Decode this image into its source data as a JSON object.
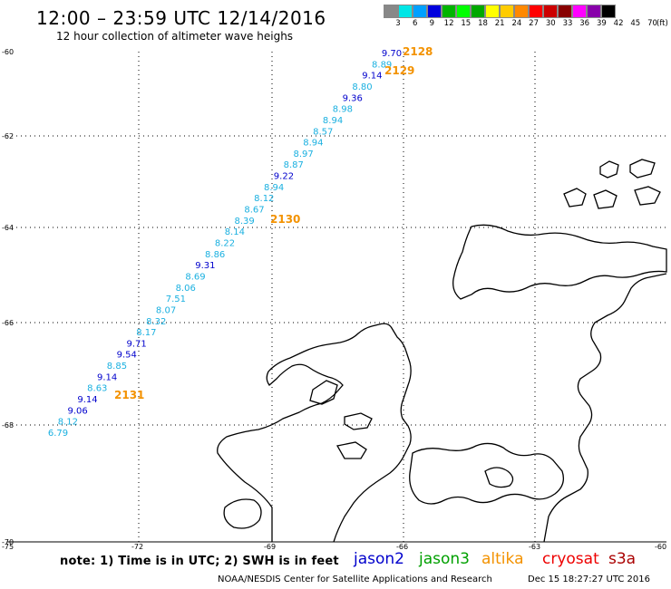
{
  "header": {
    "title": "12:00 – 23:59 UTC 12/14/2016",
    "subtitle": "12 hour collection of altimeter wave heighs"
  },
  "legend": {
    "colors": [
      "#888888",
      "#00e6e6",
      "#00a0ff",
      "#0000dd",
      "#00b400",
      "#00ff00",
      "#00a800",
      "#ffff00",
      "#ffcc00",
      "#ff8800",
      "#ff0000",
      "#cc0000",
      "#880000",
      "#ff00ff",
      "#8800aa",
      "#000000"
    ],
    "labels": [
      "3",
      "6",
      "9",
      "12",
      "15",
      "18",
      "21",
      "24",
      "27",
      "30",
      "33",
      "36",
      "39",
      "42",
      "45",
      "70"
    ],
    "unit": "(ft)"
  },
  "axes": {
    "lat_labels": [
      "-60",
      "-62",
      "-64",
      "-66",
      "-68",
      "-70"
    ],
    "lon_labels": [
      "-75",
      "-72",
      "-69",
      "-66",
      "-63",
      "-60"
    ]
  },
  "track": {
    "values": [
      "9.70",
      "8.89",
      "9.14",
      "8.80",
      "9.36",
      "8.98",
      "8.94",
      "8.57",
      "8.94",
      "8.97",
      "8.87",
      "9.22",
      "8.94",
      "8.12",
      "8.67",
      "8.39",
      "8.14",
      "8.22",
      "8.86",
      "9.31",
      "8.69",
      "8.06",
      "7.51",
      "8.07",
      "8.32",
      "8.17",
      "9.71",
      "9.54",
      "8.85",
      "9.14",
      "8.63",
      "9.14",
      "9.06",
      "8.12",
      "6.79"
    ],
    "colors": [
      "#0000cc",
      "#1ab0e0",
      "#0000cc",
      "#1ab0e0",
      "#0000cc",
      "#1ab0e0",
      "#1ab0e0",
      "#1ab0e0",
      "#1ab0e0",
      "#1ab0e0",
      "#1ab0e0",
      "#0000cc",
      "#1ab0e0",
      "#1ab0e0",
      "#1ab0e0",
      "#1ab0e0",
      "#1ab0e0",
      "#1ab0e0",
      "#1ab0e0",
      "#0000cc",
      "#1ab0e0",
      "#1ab0e0",
      "#1ab0e0",
      "#1ab0e0",
      "#1ab0e0",
      "#1ab0e0",
      "#0000cc",
      "#0000cc",
      "#1ab0e0",
      "#0000cc",
      "#1ab0e0",
      "#0000cc",
      "#0000cc",
      "#1ab0e0",
      "#1ab0e0"
    ],
    "times": [
      "2128",
      "2129",
      "2130",
      "2131"
    ],
    "time_color": "#f39200"
  },
  "footer": {
    "note": "note:  1) Time is in UTC;  2) SWH is in feet",
    "satellites": [
      {
        "name": "jason2",
        "color": "#0000cc"
      },
      {
        "name": "jason3",
        "color": "#00a000"
      },
      {
        "name": "altika",
        "color": "#f39200"
      },
      {
        "name": "cryosat",
        "color": "#ee0000"
      },
      {
        "name": "s3a",
        "color": "#aa0000"
      }
    ],
    "credit": "NOAA/NESDIS Center for Satellite Applications and Research",
    "timestamp": "Dec 15 18:27:27 UTC 2016"
  }
}
